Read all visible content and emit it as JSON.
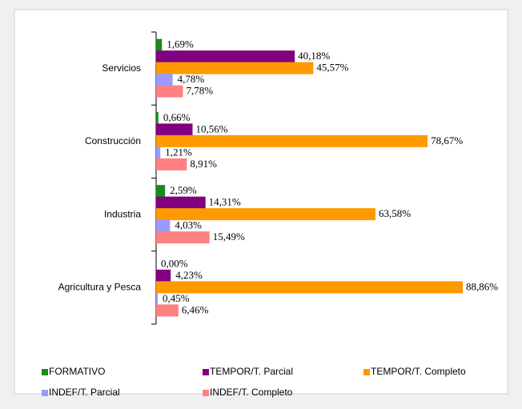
{
  "chart_data": {
    "type": "hbar",
    "categories": [
      "Servicios",
      "Construcción",
      "Industria",
      "Agricultura y Pesca"
    ],
    "series": [
      {
        "name": "FORMATIVO",
        "color": "#1a8a1a",
        "values": [
          1.69,
          0.66,
          2.59,
          0.0
        ],
        "value_labels": [
          "1,69%",
          "0,66%",
          "2,59%",
          "0,00%"
        ]
      },
      {
        "name": "TEMPOR/T. Parcial",
        "color": "#800080",
        "values": [
          40.18,
          10.56,
          14.31,
          4.23
        ],
        "value_labels": [
          "40,18%",
          "10,56%",
          "14,31%",
          "4,23%"
        ]
      },
      {
        "name": "TEMPOR/T. Completo",
        "color": "#ff9900",
        "values": [
          45.57,
          78.67,
          63.58,
          88.86
        ],
        "value_labels": [
          "45,57%",
          "78,67%",
          "63,58%",
          "88,86%"
        ]
      },
      {
        "name": "INDEF/T. Parcial",
        "color": "#9999ff",
        "values": [
          4.78,
          1.21,
          4.03,
          0.45
        ],
        "value_labels": [
          "4,78%",
          "1,21%",
          "4,03%",
          "0,45%"
        ]
      },
      {
        "name": "INDEF/T. Completo",
        "color": "#ff8080",
        "values": [
          7.78,
          8.91,
          15.49,
          6.46
        ],
        "value_labels": [
          "7,78%",
          "8,91%",
          "15,49%",
          "6,46%"
        ]
      }
    ]
  }
}
